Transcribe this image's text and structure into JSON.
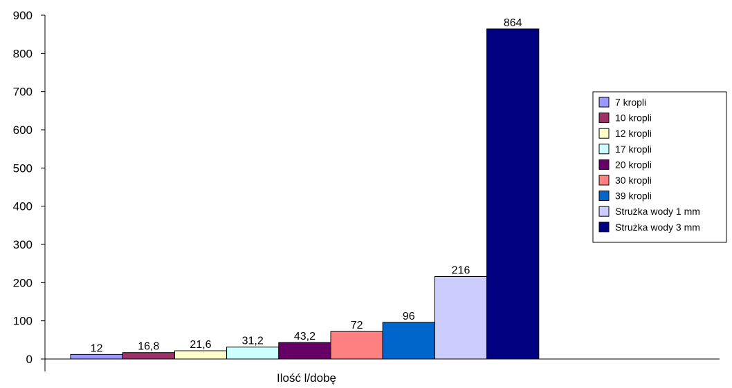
{
  "chart_data": {
    "type": "bar",
    "categories": [
      "Ilość l/dobę"
    ],
    "series": [
      {
        "name": "7 kropli",
        "values": [
          12
        ],
        "color": "#9999FF",
        "value_label": "12"
      },
      {
        "name": "10 kropli",
        "values": [
          16.8
        ],
        "color": "#993366",
        "value_label": "16,8"
      },
      {
        "name": "12 kropli",
        "values": [
          21.6
        ],
        "color": "#FFFFCC",
        "value_label": "21,6"
      },
      {
        "name": "17 kropli",
        "values": [
          31.2
        ],
        "color": "#CCFFFF",
        "value_label": "31,2"
      },
      {
        "name": "20 kropli",
        "values": [
          43.2
        ],
        "color": "#660066",
        "value_label": "43,2"
      },
      {
        "name": "30 kropli",
        "values": [
          72
        ],
        "color": "#FF8080",
        "value_label": "72"
      },
      {
        "name": "39 kropli",
        "values": [
          96
        ],
        "color": "#0066CC",
        "value_label": "96"
      },
      {
        "name": "Strużka wody 1 mm",
        "values": [
          216
        ],
        "color": "#CCCCFF",
        "value_label": "216"
      },
      {
        "name": "Strużka wody 3 mm",
        "values": [
          864
        ],
        "color": "#000080",
        "value_label": "864"
      }
    ],
    "y_ticks": [
      "0",
      "100",
      "200",
      "300",
      "400",
      "500",
      "600",
      "700",
      "800",
      "900"
    ],
    "ylim": [
      0,
      900
    ],
    "grid": false,
    "legend": "right"
  }
}
